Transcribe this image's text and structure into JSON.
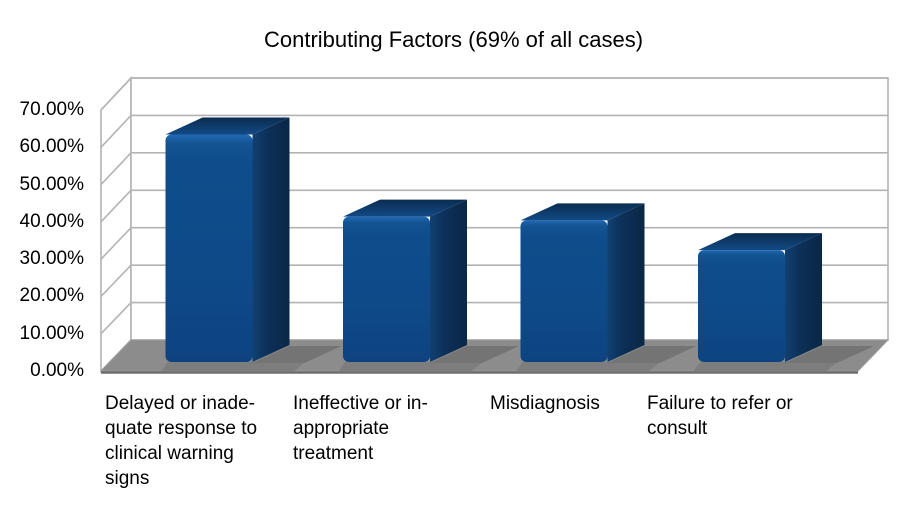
{
  "chart_data": {
    "type": "bar",
    "style": "3d-column",
    "title": "Contributing Factors (69% of all cases)",
    "categories": [
      "Delayed or inadequate response to clinical warning signs",
      "Ineffective or inappropriate treatment",
      "Misdiagnosis",
      "Failure to refer or consult"
    ],
    "category_label_lines": [
      [
        "Delayed or inade-",
        "quate response to",
        "clinical warning",
        "signs"
      ],
      [
        "Ineffective or in-",
        "appropriate",
        "treatment"
      ],
      [
        "Misdiagnosis"
      ],
      [
        "Failure to refer or",
        "consult"
      ]
    ],
    "values": [
      61,
      39,
      38,
      30
    ],
    "unit": "%",
    "xlabel": "",
    "ylabel": "",
    "ylim": [
      0,
      70
    ],
    "ytick_step": 10,
    "ytick_labels": [
      "0.00%",
      "10.00%",
      "20.00%",
      "30.00%",
      "40.00%",
      "50.00%",
      "60.00%",
      "70.00%"
    ],
    "legend": "none",
    "grid": true,
    "colors": {
      "background": "#ffffff",
      "text": "#000000",
      "wall": "#ffffff",
      "wall_border": "#b3b3b3",
      "gridline": "#b3b3b3",
      "floor": "#8c8c8c",
      "floor_front_edge": "#6e6e6e",
      "floor_shadow": "#747474",
      "floor_shadow_front": "#7d7d7d",
      "bar_front": "#0e4a88",
      "bar_front_highlight": "#2268b4",
      "bar_side": "#0c3058",
      "bar_side_dark": "#0a2746",
      "bar_top_back": "#0a2c50",
      "bar_top_front": "#124a85"
    }
  }
}
